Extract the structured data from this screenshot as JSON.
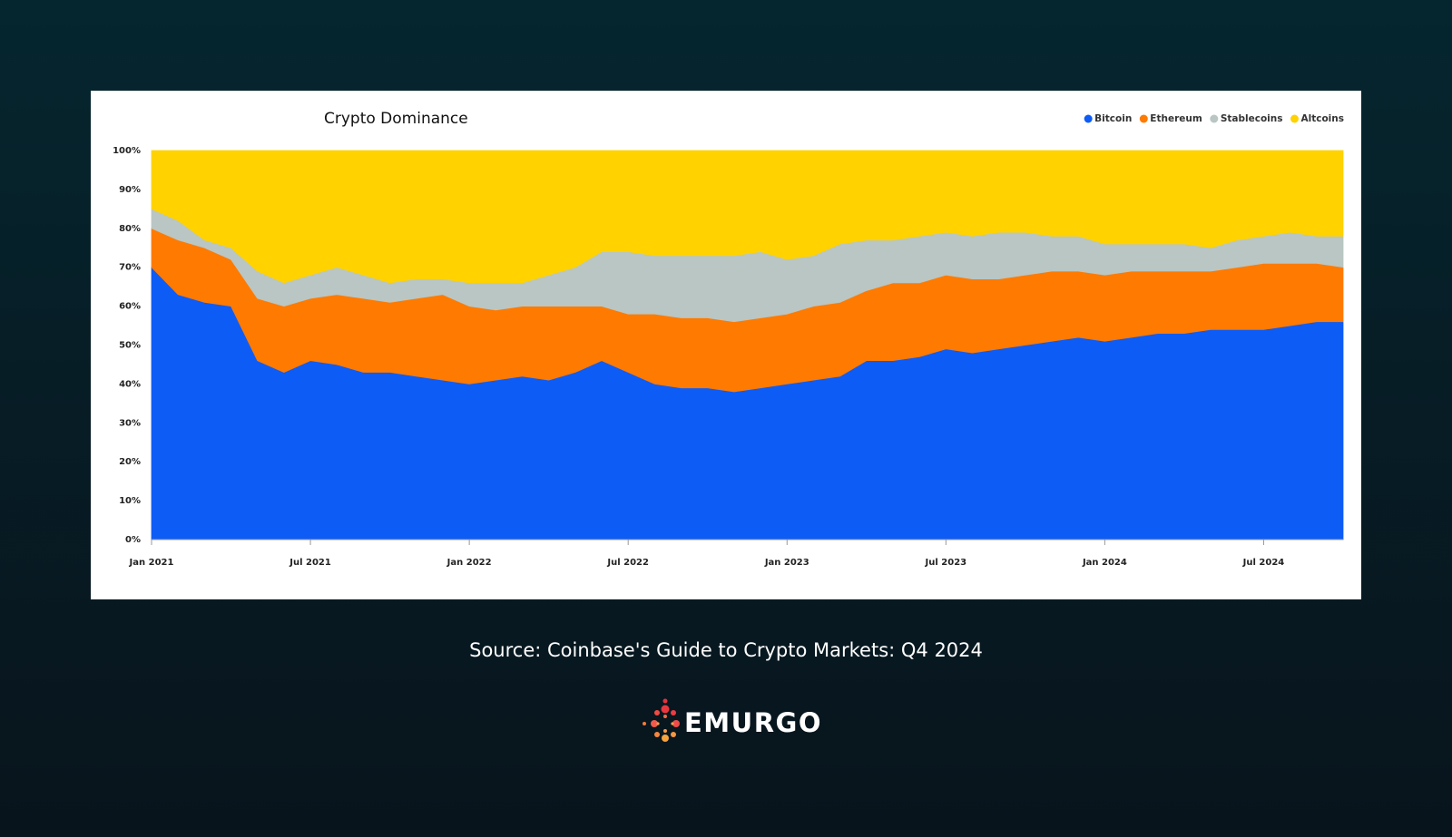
{
  "chart_data": {
    "type": "stacked-area",
    "title": "Crypto Dominance",
    "legend": "top-right",
    "grid": false,
    "x": [
      "2021-01",
      "2021-02",
      "2021-03",
      "2021-04",
      "2021-05",
      "2021-06",
      "2021-07",
      "2021-08",
      "2021-09",
      "2021-10",
      "2021-11",
      "2021-12",
      "2022-01",
      "2022-02",
      "2022-03",
      "2022-04",
      "2022-05",
      "2022-06",
      "2022-07",
      "2022-08",
      "2022-09",
      "2022-10",
      "2022-11",
      "2022-12",
      "2023-01",
      "2023-02",
      "2023-03",
      "2023-04",
      "2023-05",
      "2023-06",
      "2023-07",
      "2023-08",
      "2023-09",
      "2023-10",
      "2023-11",
      "2023-12",
      "2024-01",
      "2024-02",
      "2024-03",
      "2024-04",
      "2024-05",
      "2024-06",
      "2024-07",
      "2024-08",
      "2024-09",
      "2024-10"
    ],
    "xlim": [
      "2021-01",
      "2024-10"
    ],
    "xticks": [
      {
        "value": "2021-01",
        "label": "Jan 2021"
      },
      {
        "value": "2021-07",
        "label": "Jul 2021"
      },
      {
        "value": "2022-01",
        "label": "Jan 2022"
      },
      {
        "value": "2022-07",
        "label": "Jul 2022"
      },
      {
        "value": "2023-01",
        "label": "Jan 2023"
      },
      {
        "value": "2023-07",
        "label": "Jul 2023"
      },
      {
        "value": "2024-01",
        "label": "Jan 2024"
      },
      {
        "value": "2024-07",
        "label": "Jul 2024"
      }
    ],
    "ylim": [
      0,
      100
    ],
    "yticks": [
      {
        "value": 0,
        "label": "0%"
      },
      {
        "value": 10,
        "label": "10%"
      },
      {
        "value": 20,
        "label": "20%"
      },
      {
        "value": 30,
        "label": "30%"
      },
      {
        "value": 40,
        "label": "40%"
      },
      {
        "value": 50,
        "label": "50%"
      },
      {
        "value": 60,
        "label": "60%"
      },
      {
        "value": 70,
        "label": "70%"
      },
      {
        "value": 80,
        "label": "80%"
      },
      {
        "value": 90,
        "label": "90%"
      },
      {
        "value": 100,
        "label": "100%"
      }
    ],
    "series": [
      {
        "name": "Bitcoin",
        "color": "#0e5cf6",
        "values": [
          70,
          63,
          61,
          60,
          46,
          43,
          46,
          45,
          43,
          43,
          42,
          41,
          40,
          41,
          42,
          41,
          43,
          46,
          43,
          40,
          39,
          39,
          38,
          39,
          40,
          41,
          42,
          46,
          46,
          47,
          49,
          48,
          49,
          50,
          51,
          52,
          51,
          52,
          53,
          53,
          54,
          54,
          54,
          55,
          56,
          56
        ]
      },
      {
        "name": "Ethereum",
        "color": "#ff7a00",
        "values": [
          10,
          14,
          14,
          12,
          16,
          17,
          16,
          18,
          19,
          18,
          20,
          22,
          20,
          18,
          18,
          19,
          17,
          14,
          15,
          18,
          18,
          18,
          18,
          18,
          18,
          19,
          19,
          18,
          20,
          19,
          19,
          19,
          18,
          18,
          18,
          17,
          17,
          17,
          16,
          16,
          15,
          16,
          17,
          16,
          15,
          14
        ]
      },
      {
        "name": "Stablecoins",
        "color": "#b9c6c3",
        "values": [
          5,
          5,
          2,
          3,
          7,
          6,
          6,
          7,
          6,
          5,
          5,
          4,
          6,
          7,
          6,
          8,
          10,
          14,
          16,
          15,
          16,
          16,
          17,
          17,
          14,
          13,
          15,
          13,
          11,
          12,
          11,
          11,
          12,
          11,
          9,
          9,
          8,
          7,
          7,
          7,
          6,
          7,
          7,
          8,
          7,
          8
        ]
      },
      {
        "name": "Altcoins",
        "color": "#ffd200",
        "values": [
          15,
          18,
          23,
          25,
          31,
          34,
          32,
          30,
          32,
          34,
          33,
          33,
          34,
          34,
          34,
          32,
          30,
          26,
          26,
          27,
          27,
          27,
          27,
          26,
          28,
          27,
          24,
          23,
          23,
          22,
          21,
          22,
          21,
          21,
          22,
          22,
          24,
          24,
          24,
          24,
          25,
          23,
          22,
          21,
          22,
          22
        ]
      }
    ]
  },
  "caption": "Source: Coinbase's Guide to Crypto Markets: Q4 2024",
  "brand": "EMURGO"
}
